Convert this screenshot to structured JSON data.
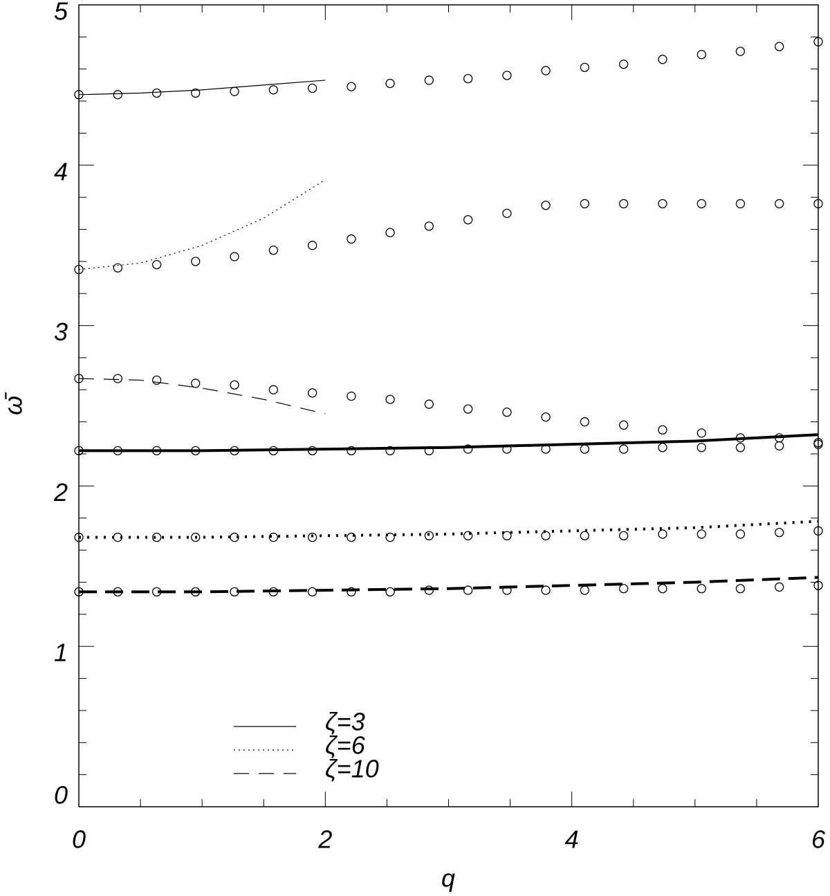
{
  "chart_data": {
    "type": "line",
    "xlabel": "q",
    "ylabel": "ω̄",
    "xlim": [
      0,
      6
    ],
    "ylim": [
      0,
      5
    ],
    "xticks": [
      0,
      2,
      4,
      6
    ],
    "yticks": [
      0,
      1,
      2,
      3,
      4,
      5
    ],
    "x_minor_per_major": 4,
    "y_minor_per_major": 5,
    "color": "#000000",
    "legend": "lower-center",
    "x": [
      0,
      0.316,
      0.632,
      0.947,
      1.263,
      1.579,
      1.895,
      2.211,
      2.526,
      2.842,
      3.158,
      3.474,
      3.789,
      4.105,
      4.421,
      4.737,
      5.053,
      5.368,
      5.684,
      6
    ],
    "series": [
      {
        "mode": "markers",
        "values": [
          4.44,
          4.44,
          4.45,
          4.45,
          4.46,
          4.47,
          4.48,
          4.49,
          4.51,
          4.53,
          4.54,
          4.56,
          4.59,
          4.61,
          4.63,
          4.66,
          4.69,
          4.71,
          4.74,
          4.77
        ]
      },
      {
        "mode": "markers",
        "values": [
          3.35,
          3.36,
          3.38,
          3.4,
          3.43,
          3.47,
          3.5,
          3.54,
          3.58,
          3.62,
          3.66,
          3.7,
          3.75,
          3.76,
          3.76,
          3.76,
          3.76,
          3.76,
          3.76,
          3.76
        ]
      },
      {
        "mode": "markers",
        "values": [
          2.67,
          2.67,
          2.66,
          2.64,
          2.63,
          2.6,
          2.58,
          2.56,
          2.54,
          2.51,
          2.48,
          2.46,
          2.43,
          2.4,
          2.38,
          2.35,
          2.33,
          2.3,
          2.3,
          2.27
        ]
      },
      {
        "mode": "markers",
        "values": [
          2.22,
          2.22,
          2.22,
          2.22,
          2.22,
          2.22,
          2.22,
          2.22,
          2.22,
          2.22,
          2.23,
          2.23,
          2.23,
          2.23,
          2.23,
          2.24,
          2.24,
          2.24,
          2.25,
          2.26
        ]
      },
      {
        "mode": "markers",
        "values": [
          1.68,
          1.68,
          1.68,
          1.68,
          1.68,
          1.68,
          1.68,
          1.68,
          1.68,
          1.69,
          1.69,
          1.69,
          1.69,
          1.69,
          1.69,
          1.7,
          1.7,
          1.7,
          1.71,
          1.72
        ]
      },
      {
        "mode": "markers",
        "values": [
          1.34,
          1.34,
          1.34,
          1.34,
          1.34,
          1.34,
          1.34,
          1.34,
          1.34,
          1.35,
          1.35,
          1.35,
          1.35,
          1.35,
          1.36,
          1.36,
          1.36,
          1.36,
          1.37,
          1.38
        ]
      },
      {
        "mode": "lines",
        "name": "ζ=3",
        "style": "solid",
        "weight": "thin",
        "x": [
          0,
          0.5,
          1,
          1.5,
          2
        ],
        "values": [
          4.44,
          4.45,
          4.47,
          4.5,
          4.53
        ]
      },
      {
        "mode": "lines",
        "name": "ζ=6",
        "style": "dotted",
        "weight": "thin",
        "x": [
          0,
          0.5,
          1,
          1.5,
          2
        ],
        "values": [
          3.35,
          3.39,
          3.5,
          3.67,
          3.91
        ]
      },
      {
        "mode": "lines",
        "name": "ζ=10",
        "style": "dashed",
        "weight": "thin",
        "x": [
          0,
          0.5,
          1,
          1.5,
          2
        ],
        "values": [
          2.67,
          2.66,
          2.61,
          2.54,
          2.45
        ]
      },
      {
        "mode": "lines",
        "style": "solid",
        "weight": "thick",
        "x": [
          0,
          1,
          2,
          3,
          4,
          5,
          6
        ],
        "values": [
          2.22,
          2.22,
          2.23,
          2.24,
          2.26,
          2.28,
          2.32
        ]
      },
      {
        "mode": "lines",
        "style": "dotted",
        "weight": "thick",
        "x": [
          0,
          1,
          2,
          3,
          4,
          5,
          6
        ],
        "values": [
          1.68,
          1.68,
          1.69,
          1.7,
          1.72,
          1.74,
          1.78
        ]
      },
      {
        "mode": "lines",
        "style": "dashed",
        "weight": "thick",
        "x": [
          0,
          1,
          2,
          3,
          4,
          5,
          6
        ],
        "values": [
          1.34,
          1.34,
          1.35,
          1.36,
          1.38,
          1.4,
          1.43
        ]
      }
    ]
  }
}
